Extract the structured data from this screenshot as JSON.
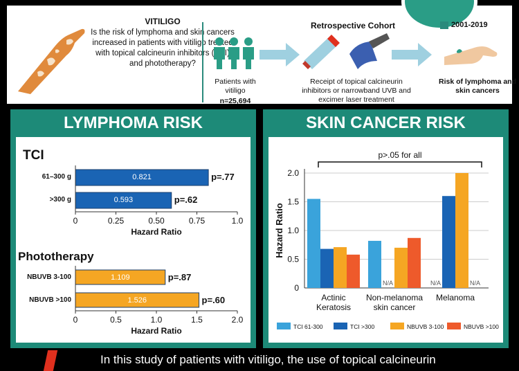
{
  "header": {
    "vitiligo_title": "VITILIGO",
    "vitiligo_question": "Is the risk of lymphoma and skin cancers increased in patients with vitiligo treated with topical calcineurin inhibitors (TCI) and phototherapy?",
    "cohort_title": "Retrospective Cohort",
    "date_range": "2001-2019",
    "patients_label": "Patients with vitiligo",
    "patients_n": "n=25,694",
    "treatment_label": "Receipt of topical calcineurin inhibitors or narrowband UVB and excimer laser treatment",
    "risk_label": "Risk of lymphoma and skin cancers"
  },
  "lymphoma": {
    "panel_title": "LYMPHOMA RISK",
    "tci_heading": "TCI",
    "photo_heading": "Phototherapy"
  },
  "skin": {
    "panel_title": "SKIN CANCER RISK"
  },
  "bottom": {
    "text": "In this study of patients with vitiligo, the use of topical calcineurin"
  },
  "colors": {
    "teal": "#1d8a78",
    "blue_dark": "#1a64b4",
    "blue_light": "#3aa3db",
    "orange": "#f5a623",
    "red": "#ee5a2b"
  },
  "chart_data": [
    {
      "type": "bar",
      "orientation": "horizontal",
      "categories": [
        "61–300 g",
        ">300 g"
      ],
      "values": [
        0.821,
        0.593
      ],
      "value_labels": [
        "0.821",
        "0.593"
      ],
      "p_values": [
        "p=.77",
        "p=.62"
      ],
      "xlabel": "Hazard Ratio",
      "xlim": [
        0,
        1.0
      ],
      "xticks": [
        "0",
        "0.25",
        "0.50",
        "0.75",
        "1.0"
      ],
      "tick_values": [
        0,
        0.25,
        0.5,
        0.75,
        1.0
      ],
      "color": "#1a64b4"
    },
    {
      "type": "bar",
      "orientation": "horizontal",
      "categories": [
        "NBUVB 3-100",
        "NBUVB >100"
      ],
      "values": [
        1.109,
        1.526
      ],
      "value_labels": [
        "1.109",
        "1.526"
      ],
      "p_values": [
        "p=.87",
        "p=.60"
      ],
      "xlabel": "Hazard Ratio",
      "xlim": [
        0,
        2.0
      ],
      "xticks": [
        "0",
        "0.5",
        "1.0",
        "1.5",
        "2.0"
      ],
      "tick_values": [
        0,
        0.5,
        1.0,
        1.5,
        2.0
      ],
      "color": "#f5a623"
    },
    {
      "type": "bar",
      "categories": [
        [
          "Actinic",
          "Keratosis"
        ],
        [
          "Non-melanoma",
          "skin cancer"
        ],
        [
          "Melanoma"
        ]
      ],
      "series": [
        {
          "name": "TCI  61-300",
          "values": [
            1.55,
            0.82,
            null
          ],
          "color": "#3aa3db"
        },
        {
          "name": "TCI  >300",
          "values": [
            0.68,
            null,
            1.6
          ],
          "color": "#1a64b4"
        },
        {
          "name": "NBUVB 3-100",
          "values": [
            0.71,
            0.7,
            2.0
          ],
          "color": "#f5a623"
        },
        {
          "name": "NBUVB >100",
          "values": [
            0.58,
            0.87,
            null
          ],
          "color": "#ee5a2b"
        }
      ],
      "na_label": "N/A",
      "annotation": "p>.05 for all",
      "ylabel": "Hazard Ratio",
      "ylim": [
        0,
        2.0
      ],
      "yticks": [
        "0",
        "0.5",
        "1.0",
        "1.5",
        "2.0"
      ],
      "tick_values": [
        0,
        0.5,
        1.0,
        1.5,
        2.0
      ],
      "grid": true,
      "legend_position": "bottom"
    }
  ]
}
